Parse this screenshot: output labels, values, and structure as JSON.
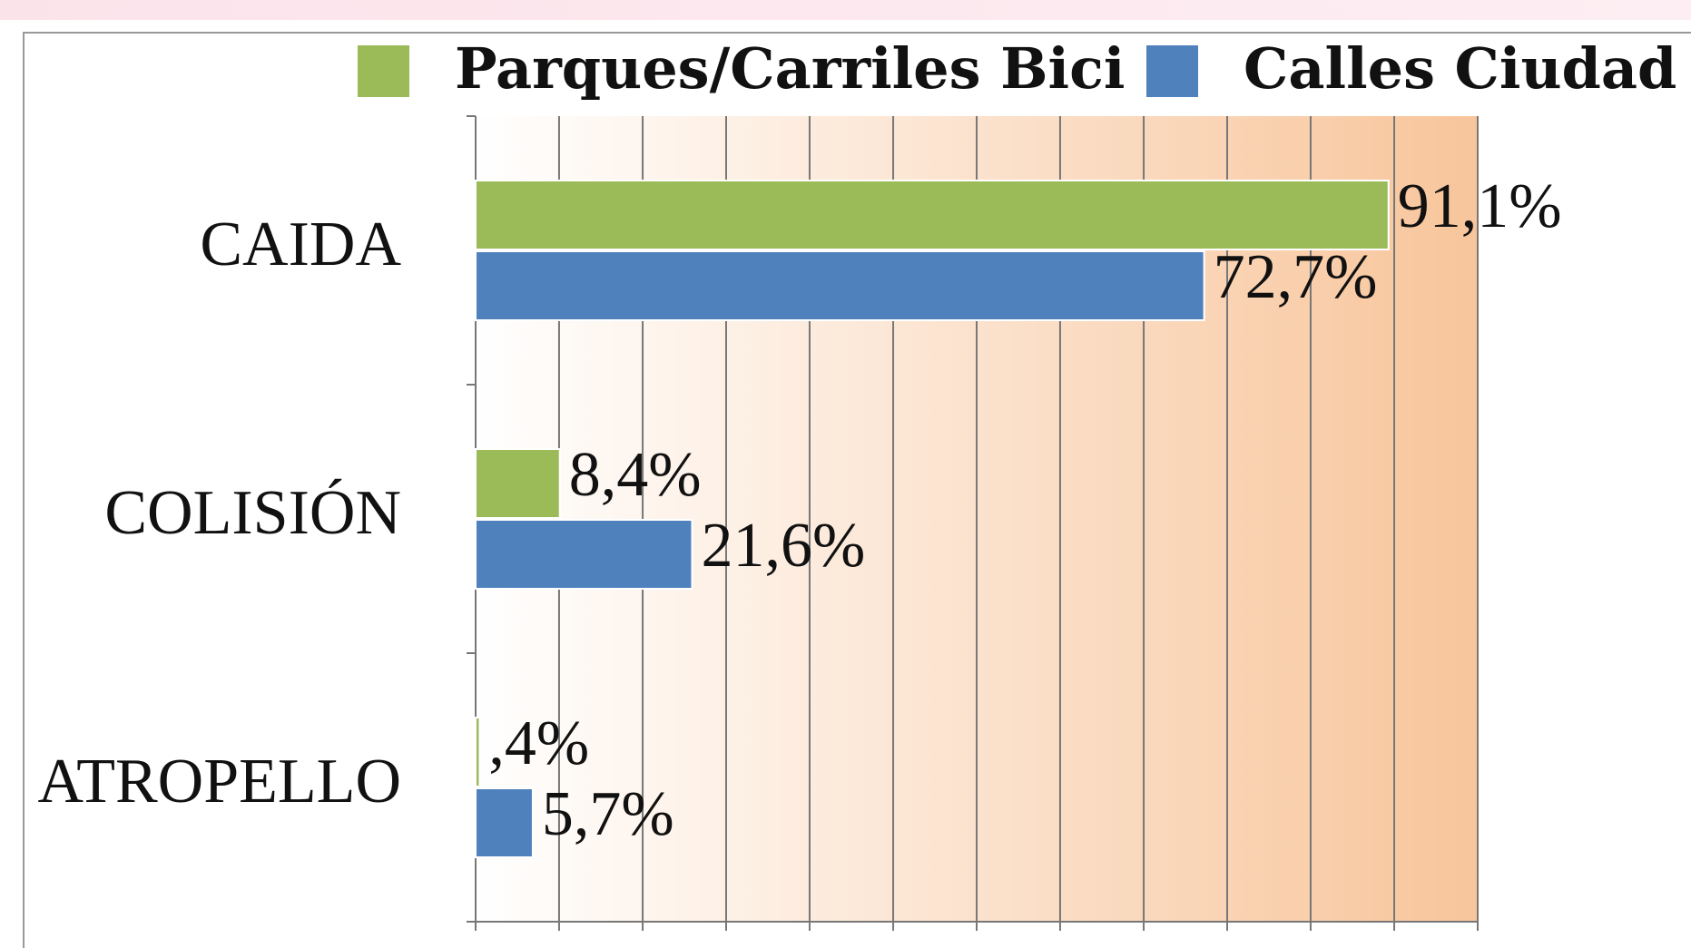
{
  "chart_data": {
    "type": "bar",
    "orientation": "horizontal",
    "categories": [
      "CAIDA",
      "COLISIÓN",
      "ATROPELLO"
    ],
    "series": [
      {
        "name": "Parques/Carriles Bici",
        "color": "#9bbb59",
        "values": [
          91.1,
          8.4,
          0.4
        ],
        "value_labels": [
          "91,1%",
          "8,4%",
          ",4%"
        ]
      },
      {
        "name": "Calles Ciudad",
        "color": "#4f81bd",
        "values": [
          72.7,
          21.6,
          5.7
        ],
        "value_labels": [
          "72,7%",
          "21,6%",
          "5,7%"
        ]
      }
    ],
    "xlim": [
      0,
      100
    ],
    "xticks": [
      0,
      8.33,
      16.67,
      25,
      33.33,
      41.67,
      50,
      58.33,
      66.67,
      75,
      83.33,
      91.67,
      100
    ],
    "grid": true,
    "legend": "top"
  }
}
